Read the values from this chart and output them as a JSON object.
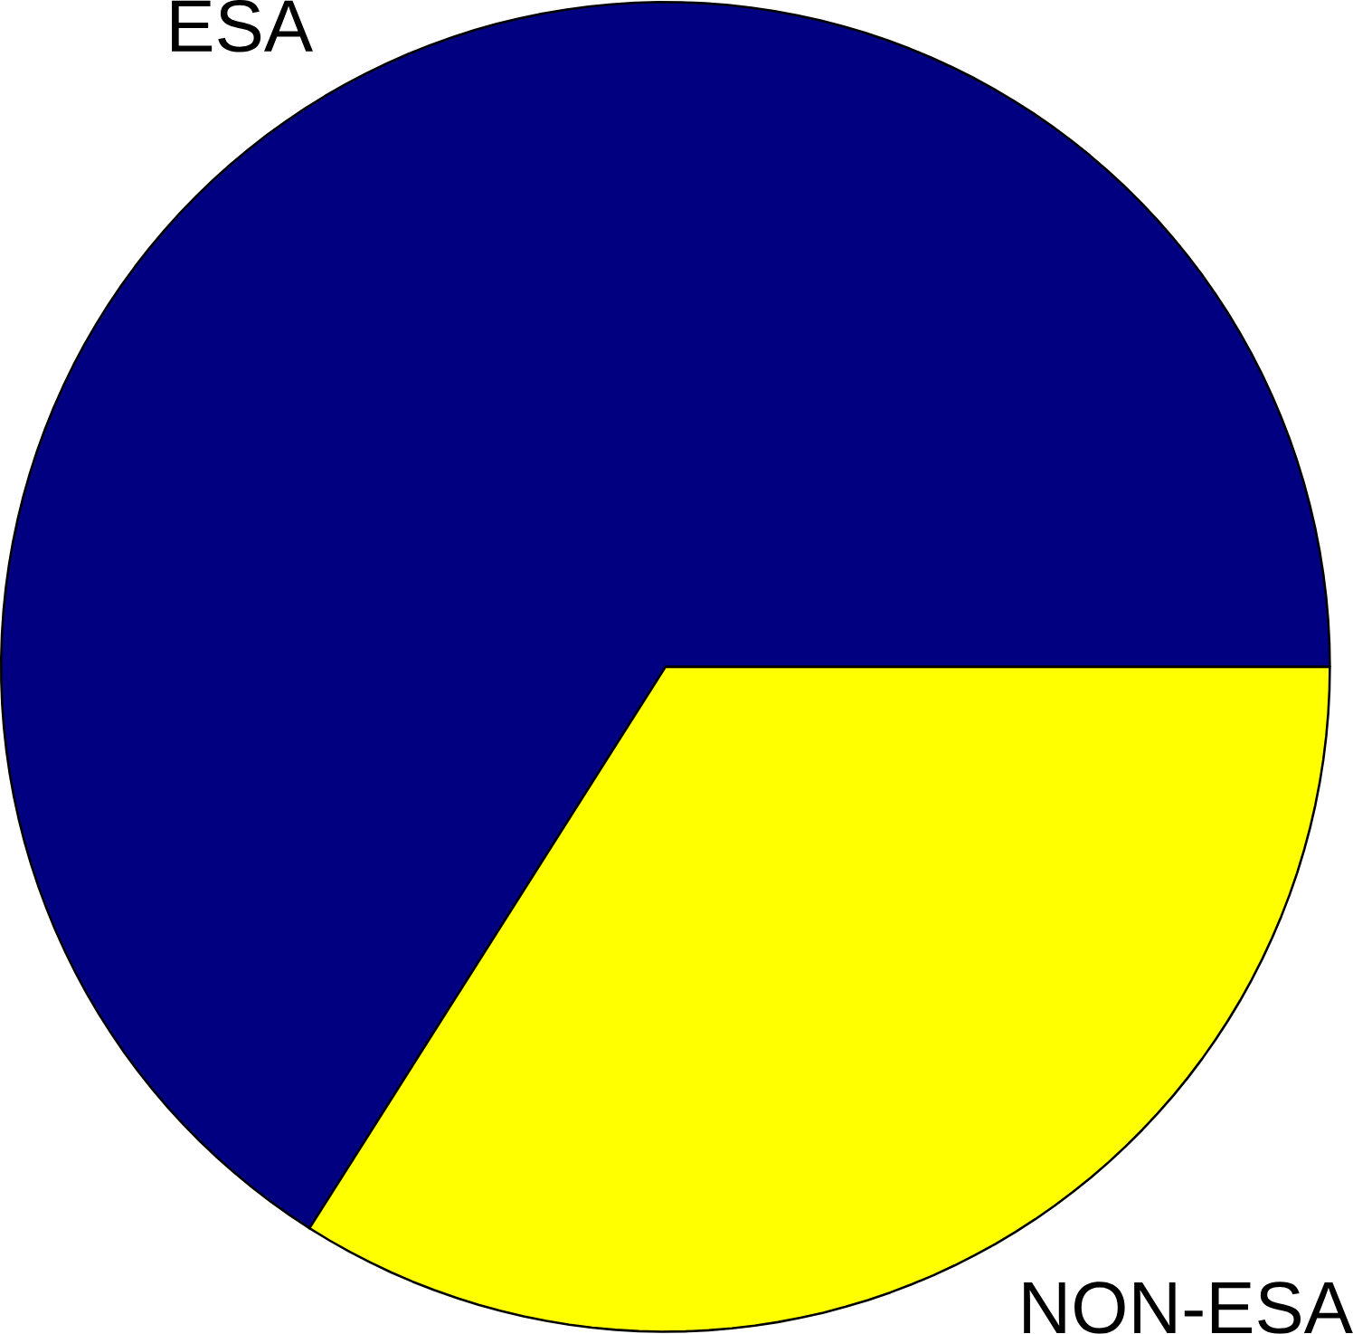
{
  "chart_data": {
    "type": "pie",
    "categories": [
      "ESA",
      "NON-ESA"
    ],
    "values": [
      66,
      34
    ],
    "colors": [
      "#000080",
      "#ffff00"
    ]
  }
}
